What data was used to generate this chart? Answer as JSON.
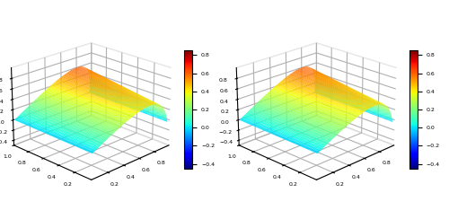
{
  "colormap": "jet",
  "vmin": -0.45,
  "vmax": 0.85,
  "elev": 22,
  "azim": 225,
  "n_points": 80,
  "figsize": [
    5.0,
    2.44
  ],
  "dpi": 100,
  "colorbar_ticks": [
    -0.4,
    -0.2,
    0,
    0.2,
    0.4,
    0.6,
    0.8
  ],
  "background_color": "#ffffff",
  "zlim": [
    -0.5,
    1.0
  ],
  "xlim": [
    0,
    1
  ],
  "ylim": [
    0,
    1
  ]
}
